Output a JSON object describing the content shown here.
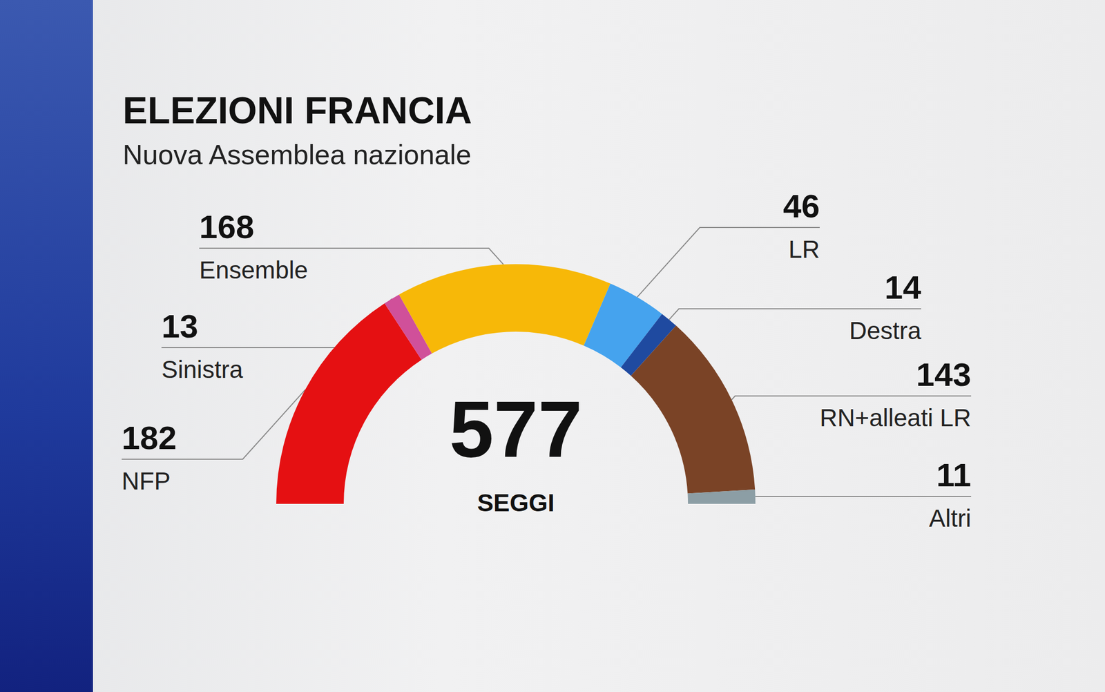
{
  "chart_data": {
    "type": "pie",
    "title": "ELEZIONI FRANCIA",
    "subtitle": "Nuova Assemblea nazionale",
    "categories": [
      "NFP",
      "Sinistra",
      "Ensemble",
      "LR",
      "Destra",
      "RN+alleati LR",
      "Altri"
    ],
    "values": [
      182,
      13,
      168,
      46,
      14,
      143,
      11
    ],
    "colors": [
      "#e51012",
      "#d0509a",
      "#f7b808",
      "#45a3ee",
      "#1f4aa0",
      "#7a4326",
      "#8c9ea5"
    ],
    "total": 577,
    "total_label": "SEGGI",
    "data_labels": true
  }
}
